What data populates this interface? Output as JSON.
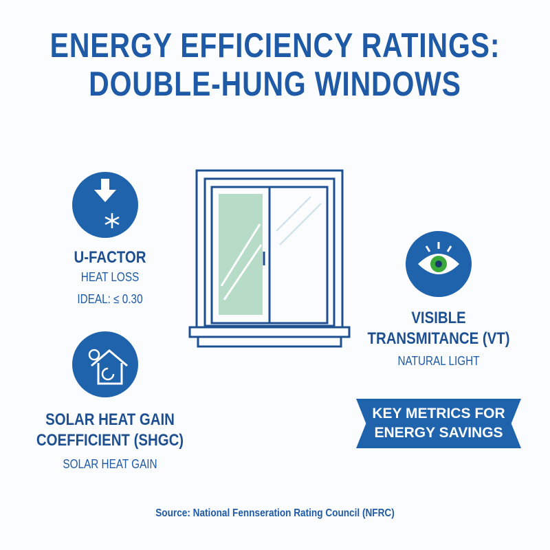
{
  "title": {
    "line1": "ENERGY EFFICIENCY RATINGS:",
    "line2": "DOUBLE-HUNG WINDOWS"
  },
  "ufactor": {
    "icon": "arrow-down-snowflake-icon",
    "heading": "U-FACTOR",
    "sub": "HEAT LOSS",
    "ideal": "IDEAL: ≤ 0.30"
  },
  "shgc": {
    "icon": "sun-house-icon",
    "heading1": "SOLAR HEAT GAIN",
    "heading2": "COEFFICIENT (SHGC)",
    "sub": "SOLAR HEAT GAIN"
  },
  "vt": {
    "icon": "eye-icon",
    "heading1": "VISIBLE",
    "heading2": "TRANSMITANCE (VT)",
    "sub": "NATURAL LIGHT"
  },
  "banner": {
    "line1": "KEY METRICS FOR",
    "line2": "ENERGY SAVINGS"
  },
  "source": "Source: National Fennseration Rating Council (NFRC)",
  "colors": {
    "primary": "#1f63ad",
    "glass": "#b6dcc8",
    "eye": "#3aa83a"
  }
}
